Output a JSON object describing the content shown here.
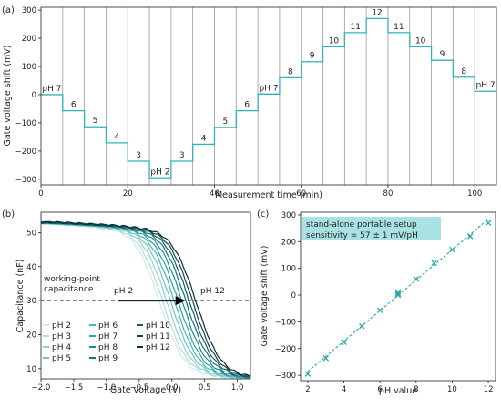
{
  "chart_data": [
    {
      "panel": "(a)",
      "type": "line",
      "xlabel": "Measurement time (min)",
      "ylabel": "Gate voltage shift (mV)",
      "xlim": [
        0,
        105
      ],
      "ylim": [
        -320,
        310
      ],
      "xticks": [
        "0",
        "20",
        "40",
        "60",
        "80",
        "100"
      ],
      "yticks": [
        "−300",
        "−200",
        "−100",
        "0",
        "100",
        "200",
        "300"
      ],
      "grid": false,
      "line_color": "#2fb3b8",
      "segments": [
        {
          "label": "pH 7",
          "value": 0
        },
        {
          "label": "6",
          "value": -57
        },
        {
          "label": "5",
          "value": -114
        },
        {
          "label": "4",
          "value": -171
        },
        {
          "label": "3",
          "value": -236
        },
        {
          "label": "pH 2",
          "value": -295
        },
        {
          "label": "3",
          "value": -236
        },
        {
          "label": "4",
          "value": -176
        },
        {
          "label": "5",
          "value": -116
        },
        {
          "label": "6",
          "value": -57
        },
        {
          "label": "pH 7",
          "value": 2
        },
        {
          "label": "8",
          "value": 60
        },
        {
          "label": "9",
          "value": 117
        },
        {
          "label": "10",
          "value": 170
        },
        {
          "label": "11",
          "value": 220
        },
        {
          "label": "12",
          "value": 270
        },
        {
          "label": "11",
          "value": 220
        },
        {
          "label": "10",
          "value": 170
        },
        {
          "label": "9",
          "value": 122
        },
        {
          "label": "8",
          "value": 62
        },
        {
          "label": "pH 7",
          "value": 12
        }
      ],
      "segment_boundaries": [
        5,
        10,
        15,
        20,
        25,
        30,
        35,
        40,
        45,
        50,
        55,
        60,
        65,
        70,
        75,
        80,
        85,
        90,
        95,
        100
      ]
    },
    {
      "panel": "(b)",
      "type": "line",
      "xlabel": "Gate voltage (V)",
      "ylabel": "Capacitance (nF)",
      "xlim": [
        -2.0,
        1.2
      ],
      "ylim": [
        7,
        56
      ],
      "xticks": [
        "−2.0",
        "−1.5",
        "−1.0",
        "−0.5",
        "0.0",
        "0.5",
        "1.0"
      ],
      "yticks": [
        "10",
        "20",
        "30",
        "40",
        "50"
      ],
      "working_point": {
        "label_line1": "working-point",
        "label_line2": "capacitance",
        "value": 30
      },
      "arrow": {
        "from_label": "pH 2",
        "to_label": "pH 12"
      },
      "series": [
        {
          "name": "pH 2",
          "color": "#d2e8e8",
          "shift": -0.29
        },
        {
          "name": "pH 3",
          "color": "#b3dcdc",
          "shift": -0.236
        },
        {
          "name": "pH 4",
          "color": "#93d0d0",
          "shift": -0.175
        },
        {
          "name": "pH 5",
          "color": "#6ec3c4",
          "shift": -0.115
        },
        {
          "name": "pH 6",
          "color": "#45b5b7",
          "shift": -0.057
        },
        {
          "name": "pH 7",
          "color": "#25a4a8",
          "shift": 0.0
        },
        {
          "name": "pH 8",
          "color": "#1a8d92",
          "shift": 0.06
        },
        {
          "name": "pH 9",
          "color": "#15747a",
          "shift": 0.118
        },
        {
          "name": "pH 10",
          "color": "#135c63",
          "shift": 0.17
        },
        {
          "name": "pH 11",
          "color": "#12434b",
          "shift": 0.22
        },
        {
          "name": "pH 12",
          "color": "#122b34",
          "shift": 0.27
        }
      ]
    },
    {
      "panel": "(c)",
      "type": "scatter",
      "xlabel": "pH value",
      "ylabel": "Gate voltage shift (mV)",
      "xlim": [
        1.6,
        12.4
      ],
      "ylim": [
        -320,
        310
      ],
      "xticks": [
        "2",
        "4",
        "6",
        "8",
        "10",
        "12"
      ],
      "yticks": [
        "−300",
        "−200",
        "−100",
        "0",
        "100",
        "200",
        "300"
      ],
      "annotation_line1": "stand-alone portable setup",
      "annotation_line2": "sensitivity = 57 ± 1 mV/pH",
      "annotation_color": "#a8e2e2",
      "point_color": "#2aa8ad",
      "points": [
        {
          "x": 2,
          "y": -295
        },
        {
          "x": 3,
          "y": -236
        },
        {
          "x": 4,
          "y": -176
        },
        {
          "x": 5,
          "y": -116
        },
        {
          "x": 6,
          "y": -57
        },
        {
          "x": 7,
          "y": 0
        },
        {
          "x": 7,
          "y": 5
        },
        {
          "x": 7,
          "y": 12
        },
        {
          "x": 8,
          "y": 60
        },
        {
          "x": 9,
          "y": 120
        },
        {
          "x": 10,
          "y": 170
        },
        {
          "x": 11,
          "y": 220
        },
        {
          "x": 12,
          "y": 270
        }
      ],
      "fit": {
        "slope": 57,
        "intercept": -400
      }
    }
  ]
}
